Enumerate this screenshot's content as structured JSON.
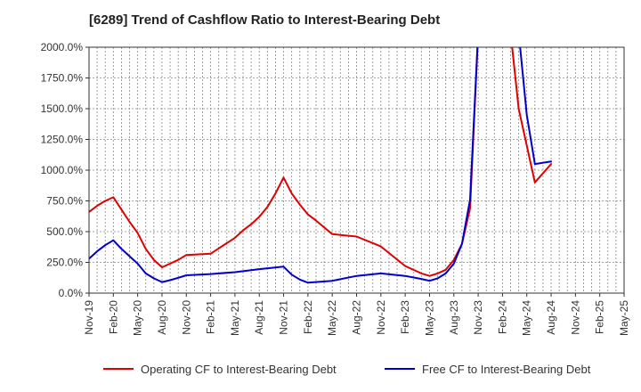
{
  "chart_data": {
    "type": "line",
    "title": "[6289]  Trend of Cashflow Ratio to Interest-Bearing Debt",
    "xlabel": "",
    "ylabel": "",
    "ylim": [
      0,
      2000
    ],
    "xlim": [
      "2019-11",
      "2025-05"
    ],
    "y_ticks": [
      0,
      250,
      500,
      750,
      1000,
      1250,
      1500,
      1750,
      2000
    ],
    "y_tick_labels": [
      "0.0%",
      "250.0%",
      "500.0%",
      "750.0%",
      "1000.0%",
      "1250.0%",
      "1500.0%",
      "1750.0%",
      "2000.0%"
    ],
    "x_tick_labels": [
      "Nov-19",
      "Feb-20",
      "May-20",
      "Aug-20",
      "Nov-20",
      "Feb-21",
      "May-21",
      "Aug-21",
      "Nov-21",
      "Feb-22",
      "May-22",
      "Aug-22",
      "Nov-22",
      "Feb-23",
      "May-23",
      "Aug-23",
      "Nov-23",
      "Feb-24",
      "May-24",
      "Aug-24",
      "Nov-24",
      "Feb-25",
      "May-25"
    ],
    "grid": true,
    "legend_position": "bottom",
    "series": [
      {
        "name": "Operating CF to Interest-Bearing Debt",
        "color": "#e00000",
        "x": [
          "2019-11",
          "2019-12",
          "2020-01",
          "2020-02",
          "2020-03",
          "2020-04",
          "2020-05",
          "2020-06",
          "2020-07",
          "2020-08",
          "2020-09",
          "2020-10",
          "2020-11",
          "2021-02",
          "2021-05",
          "2021-06",
          "2021-07",
          "2021-08",
          "2021-09",
          "2021-10",
          "2021-11",
          "2021-12",
          "2022-01",
          "2022-02",
          "2022-03",
          "2022-05",
          "2022-08",
          "2022-11",
          "2023-02",
          "2023-04",
          "2023-05",
          "2023-06",
          "2023-07",
          "2023-08",
          "2023-09",
          "2023-10",
          "2023-11",
          "2024-03",
          "2024-04",
          "2024-05",
          "2024-06",
          "2024-08"
        ],
        "values": [
          660,
          710,
          750,
          780,
          680,
          580,
          490,
          360,
          270,
          210,
          240,
          270,
          310,
          320,
          450,
          510,
          560,
          620,
          700,
          810,
          940,
          810,
          720,
          640,
          590,
          480,
          460,
          380,
          220,
          160,
          140,
          160,
          190,
          270,
          400,
          690,
          2000,
          2000,
          1500,
          1200,
          900,
          1050
        ]
      },
      {
        "name": "Free CF to Interest-Bearing Debt",
        "color": "#0000cc",
        "x": [
          "2019-11",
          "2019-12",
          "2020-01",
          "2020-02",
          "2020-03",
          "2020-04",
          "2020-05",
          "2020-06",
          "2020-07",
          "2020-08",
          "2020-09",
          "2020-10",
          "2020-11",
          "2021-02",
          "2021-05",
          "2021-08",
          "2021-11",
          "2021-12",
          "2022-01",
          "2022-02",
          "2022-05",
          "2022-08",
          "2022-11",
          "2023-02",
          "2023-04",
          "2023-05",
          "2023-06",
          "2023-07",
          "2023-08",
          "2023-09",
          "2023-10",
          "2023-11",
          "2024-04",
          "2024-05",
          "2024-06",
          "2024-08"
        ],
        "values": [
          280,
          340,
          390,
          430,
          360,
          300,
          240,
          160,
          120,
          90,
          105,
          125,
          145,
          155,
          170,
          195,
          215,
          150,
          110,
          85,
          100,
          140,
          160,
          140,
          115,
          100,
          120,
          160,
          240,
          400,
          760,
          2000,
          2000,
          1450,
          1050,
          1070
        ]
      }
    ]
  }
}
